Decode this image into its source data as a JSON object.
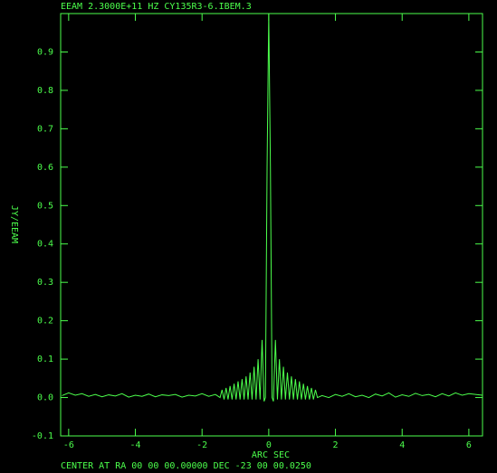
{
  "chart_data": {
    "type": "line",
    "title": "EEAM  2.3000E+11 HZ  CY135R3-6.IBEM.3",
    "x_label": "ARC SEC",
    "y_label": "JY/EEAM",
    "footer": "CENTER AT RA 00 00 00.00000  DEC -23 00 00.0250",
    "color": "#4cff4c",
    "xlim": [
      -6.24,
      6.41
    ],
    "ylim": [
      -0.1,
      1.0
    ],
    "xticks": [
      -6,
      -4,
      -2,
      0,
      2,
      4,
      6
    ],
    "yticks": [
      -0.1,
      {
        "value": 0,
        "label": "0.0"
      },
      0.1,
      0.2,
      0.3,
      0.4,
      0.5,
      0.6,
      0.7,
      0.8,
      0.9
    ],
    "x": [
      -6.2,
      -6.0,
      -5.8,
      -5.6,
      -5.4,
      -5.2,
      -5.0,
      -4.8,
      -4.6,
      -4.4,
      -4.2,
      -4.0,
      -3.8,
      -3.6,
      -3.4,
      -3.2,
      -3.0,
      -2.8,
      -2.6,
      -2.4,
      -2.2,
      -2.0,
      -1.8,
      -1.6,
      -1.46,
      -1.4,
      -1.34,
      -1.28,
      -1.22,
      -1.16,
      -1.1,
      -1.04,
      -0.98,
      -0.92,
      -0.86,
      -0.8,
      -0.74,
      -0.68,
      -0.62,
      -0.56,
      -0.5,
      -0.44,
      -0.38,
      -0.32,
      -0.26,
      -0.2,
      -0.14,
      -0.1,
      -0.05,
      0,
      0.05,
      0.1,
      0.14,
      0.2,
      0.26,
      0.32,
      0.38,
      0.44,
      0.5,
      0.56,
      0.62,
      0.68,
      0.74,
      0.8,
      0.86,
      0.92,
      0.98,
      1.04,
      1.1,
      1.16,
      1.22,
      1.28,
      1.34,
      1.4,
      1.46,
      1.6,
      1.8,
      2.0,
      2.2,
      2.4,
      2.6,
      2.8,
      3.0,
      3.2,
      3.4,
      3.6,
      3.8,
      4.0,
      4.2,
      4.4,
      4.6,
      4.8,
      5.0,
      5.2,
      5.4,
      5.6,
      5.8,
      6.0,
      6.2,
      6.4
    ],
    "values": [
      0.005,
      0.012,
      0.006,
      0.01,
      0.003,
      0.008,
      0.002,
      0.007,
      0.004,
      0.01,
      0.001,
      0.006,
      0.003,
      0.009,
      0.002,
      0.007,
      0.005,
      0.008,
      0.001,
      0.006,
      0.004,
      0.01,
      0.003,
      0.008,
      0.0,
      0.02,
      -0.005,
      0.025,
      -0.005,
      0.03,
      -0.005,
      0.036,
      -0.005,
      0.042,
      -0.005,
      0.048,
      -0.005,
      0.055,
      -0.005,
      0.065,
      -0.005,
      0.08,
      -0.005,
      0.1,
      -0.005,
      0.15,
      -0.01,
      0,
      0.6,
      1.0,
      0.6,
      0,
      -0.01,
      0.15,
      -0.005,
      0.1,
      -0.005,
      0.08,
      -0.005,
      0.065,
      -0.005,
      0.055,
      -0.005,
      0.048,
      -0.005,
      0.042,
      -0.005,
      0.036,
      -0.005,
      0.03,
      -0.005,
      0.025,
      -0.005,
      0.02,
      0.0,
      0.005,
      0.0,
      0.008,
      0.003,
      0.01,
      0.002,
      0.006,
      0.0,
      0.009,
      0.004,
      0.012,
      0.001,
      0.007,
      0.003,
      0.011,
      0.005,
      0.008,
      0.002,
      0.01,
      0.004,
      0.012,
      0.006,
      0.01,
      0.008,
      0.006
    ]
  }
}
